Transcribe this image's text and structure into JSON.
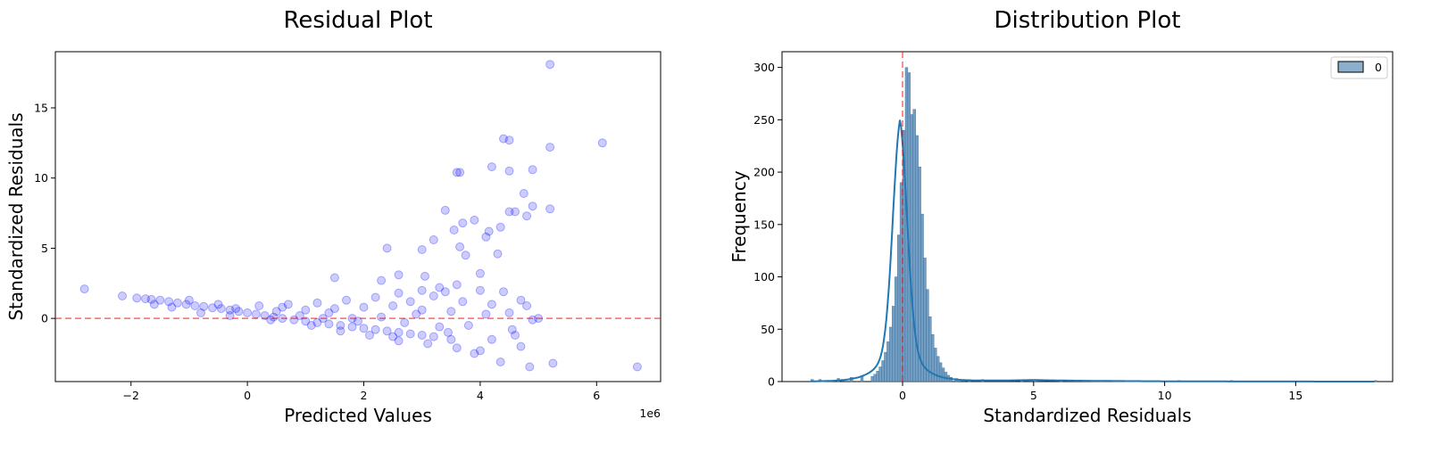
{
  "colors": {
    "scatter_point": "#0000ff",
    "reference_line": "#ff0000",
    "hist_bar": "#5b8db8",
    "kde_line": "#1f77b4"
  },
  "chart_data": [
    {
      "type": "scatter",
      "title": "Residual Plot",
      "xlabel": "Predicted Values",
      "ylabel": "Standardized Residuals",
      "x_offset_text": "1e6",
      "xlim": [
        -3.3,
        7.1
      ],
      "ylim": [
        -4.5,
        19.0
      ],
      "xticks": [
        -2,
        0,
        2,
        4,
        6
      ],
      "yticks": [
        0,
        5,
        10,
        15
      ],
      "reference_line": {
        "axis": "y",
        "value": 0,
        "style": "dashed"
      },
      "grid": false,
      "point_alpha": 0.2,
      "points": [
        [
          -2.8,
          2.1
        ],
        [
          -2.15,
          1.6
        ],
        [
          -1.9,
          1.45
        ],
        [
          -1.75,
          1.4
        ],
        [
          -1.65,
          1.35
        ],
        [
          -1.5,
          1.3
        ],
        [
          -1.35,
          1.2
        ],
        [
          -1.2,
          1.1
        ],
        [
          -1.05,
          1.0
        ],
        [
          -0.9,
          0.9
        ],
        [
          -0.75,
          0.85
        ],
        [
          -0.6,
          0.75
        ],
        [
          -0.45,
          0.7
        ],
        [
          -0.3,
          0.6
        ],
        [
          -0.15,
          0.5
        ],
        [
          0.0,
          0.4
        ],
        [
          0.15,
          0.3
        ],
        [
          0.3,
          0.2
        ],
        [
          0.45,
          0.1
        ],
        [
          0.6,
          0.0
        ],
        [
          0.8,
          -0.1
        ],
        [
          1.0,
          -0.2
        ],
        [
          1.2,
          -0.3
        ],
        [
          1.4,
          -0.4
        ],
        [
          1.6,
          -0.5
        ],
        [
          1.8,
          -0.6
        ],
        [
          2.0,
          -0.7
        ],
        [
          2.2,
          -0.8
        ],
        [
          2.4,
          -0.9
        ],
        [
          2.6,
          -1.0
        ],
        [
          2.8,
          -1.1
        ],
        [
          3.0,
          -1.2
        ],
        [
          3.2,
          -1.3
        ],
        [
          3.5,
          -1.5
        ],
        [
          -1.0,
          1.3
        ],
        [
          -0.5,
          1.0
        ],
        [
          0.2,
          0.9
        ],
        [
          0.7,
          1.0
        ],
        [
          1.2,
          1.1
        ],
        [
          1.7,
          1.3
        ],
        [
          2.2,
          1.5
        ],
        [
          2.6,
          1.8
        ],
        [
          3.0,
          2.0
        ],
        [
          3.3,
          2.2
        ],
        [
          3.6,
          2.4
        ],
        [
          4.0,
          2.0
        ],
        [
          0.5,
          0.5
        ],
        [
          1.0,
          0.6
        ],
        [
          1.5,
          0.7
        ],
        [
          2.0,
          0.8
        ],
        [
          2.5,
          0.9
        ],
        [
          3.0,
          0.6
        ],
        [
          1.1,
          -0.5
        ],
        [
          1.6,
          -0.9
        ],
        [
          2.1,
          -1.2
        ],
        [
          2.6,
          -1.6
        ],
        [
          3.1,
          -1.8
        ],
        [
          3.6,
          -2.1
        ],
        [
          4.0,
          -2.3
        ],
        [
          1.5,
          2.9
        ],
        [
          2.3,
          2.7
        ],
        [
          2.6,
          3.1
        ],
        [
          3.05,
          3.0
        ],
        [
          3.4,
          1.9
        ],
        [
          3.7,
          1.2
        ],
        [
          4.2,
          1.0
        ],
        [
          2.4,
          5.0
        ],
        [
          3.0,
          4.9
        ],
        [
          3.2,
          5.6
        ],
        [
          3.55,
          6.3
        ],
        [
          3.65,
          5.1
        ],
        [
          3.75,
          4.5
        ],
        [
          3.4,
          7.7
        ],
        [
          3.7,
          6.8
        ],
        [
          3.9,
          7.0
        ],
        [
          4.1,
          5.8
        ],
        [
          4.15,
          6.2
        ],
        [
          4.3,
          4.6
        ],
        [
          4.35,
          6.5
        ],
        [
          4.0,
          3.2
        ],
        [
          3.6,
          10.4
        ],
        [
          3.65,
          10.4
        ],
        [
          4.2,
          10.8
        ],
        [
          4.4,
          12.8
        ],
        [
          4.5,
          12.7
        ],
        [
          4.5,
          10.5
        ],
        [
          4.75,
          8.9
        ],
        [
          4.9,
          10.6
        ],
        [
          4.9,
          8.0
        ],
        [
          4.5,
          7.6
        ],
        [
          4.6,
          7.6
        ],
        [
          4.8,
          7.3
        ],
        [
          5.2,
          12.2
        ],
        [
          5.2,
          7.8
        ],
        [
          6.1,
          12.5
        ],
        [
          5.2,
          18.1
        ],
        [
          4.4,
          1.9
        ],
        [
          4.5,
          0.4
        ],
        [
          4.7,
          1.3
        ],
        [
          4.8,
          0.9
        ],
        [
          4.9,
          -0.1
        ],
        [
          4.6,
          -1.2
        ],
        [
          4.7,
          -2.0
        ],
        [
          4.55,
          -0.8
        ],
        [
          4.85,
          -3.45
        ],
        [
          5.25,
          -3.2
        ],
        [
          6.7,
          -3.45
        ],
        [
          4.35,
          -3.1
        ],
        [
          3.9,
          -2.5
        ],
        [
          4.2,
          -1.5
        ],
        [
          4.1,
          0.3
        ],
        [
          3.8,
          -0.5
        ],
        [
          5.0,
          0.0
        ],
        [
          -0.8,
          0.4
        ],
        [
          -0.3,
          0.2
        ],
        [
          0.4,
          -0.1
        ],
        [
          0.9,
          0.2
        ],
        [
          1.3,
          0.0
        ],
        [
          1.9,
          -0.2
        ],
        [
          2.3,
          0.1
        ],
        [
          2.7,
          -0.3
        ],
        [
          2.9,
          0.3
        ],
        [
          3.3,
          -0.6
        ],
        [
          3.5,
          0.5
        ],
        [
          -1.6,
          1.0
        ],
        [
          -1.3,
          0.8
        ],
        [
          -0.2,
          0.7
        ],
        [
          0.6,
          0.8
        ],
        [
          1.4,
          0.4
        ],
        [
          1.8,
          0.0
        ],
        [
          2.8,
          1.2
        ],
        [
          3.2,
          1.6
        ],
        [
          3.45,
          -1.0
        ],
        [
          2.5,
          -1.3
        ]
      ]
    },
    {
      "type": "bar",
      "title": "Distribution Plot",
      "xlabel": "Standardized Residuals",
      "ylabel": "Frequency",
      "xlim": [
        -4.6,
        18.7
      ],
      "ylim": [
        0,
        315
      ],
      "xticks": [
        0,
        5,
        10,
        15
      ],
      "yticks": [
        0,
        50,
        100,
        150,
        200,
        250,
        300
      ],
      "legend": {
        "position": "top-right",
        "entries": [
          "0"
        ]
      },
      "reference_line": {
        "axis": "x",
        "value": 0,
        "style": "dashed"
      },
      "grid": false,
      "bin_width": 0.1,
      "bins_start": -1.2,
      "counts": [
        5,
        7,
        10,
        14,
        20,
        28,
        38,
        52,
        72,
        100,
        140,
        190,
        240,
        300,
        295,
        255,
        260,
        235,
        205,
        160,
        118,
        88,
        62,
        45,
        32,
        24,
        18,
        13,
        9,
        6,
        4
      ],
      "tail_counts": [
        {
          "x": -3.5,
          "count": 2
        },
        {
          "x": -3.2,
          "count": 2
        },
        {
          "x": -2.5,
          "count": 3
        },
        {
          "x": -2.0,
          "count": 4
        },
        {
          "x": -1.6,
          "count": 5
        },
        {
          "x": 2.0,
          "count": 3
        },
        {
          "x": 2.5,
          "count": 2
        },
        {
          "x": 3.0,
          "count": 2
        },
        {
          "x": 4.5,
          "count": 1
        },
        {
          "x": 5.0,
          "count": 2
        },
        {
          "x": 6.0,
          "count": 1
        },
        {
          "x": 7.5,
          "count": 1
        },
        {
          "x": 9.0,
          "count": 1
        },
        {
          "x": 10.5,
          "count": 1
        },
        {
          "x": 12.5,
          "count": 1
        },
        {
          "x": 18.0,
          "count": 1
        }
      ],
      "kde": {
        "peak_x": -0.1,
        "peak_y": 250
      }
    }
  ]
}
